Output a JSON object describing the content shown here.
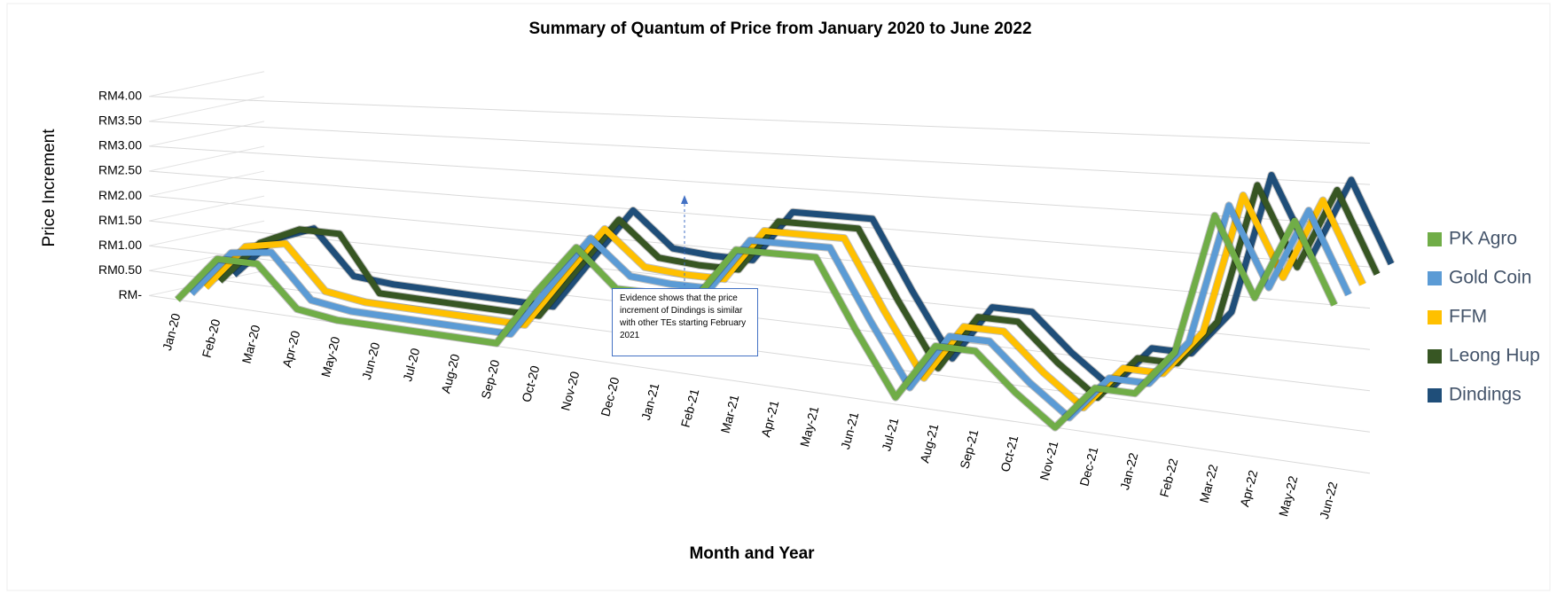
{
  "chart_data": {
    "type": "line",
    "title": "Summary of Quantum of Price from January 2020 to June 2022",
    "xlabel": "Month and Year",
    "ylabel": "Price Increment",
    "annotation": "Evidence shows that the price increment of Dindings is similar with other TEs starting February 2021",
    "categories": [
      "Jan-20",
      "Feb-20",
      "Mar-20",
      "Apr-20",
      "May-20",
      "Jun-20",
      "Jul-20",
      "Aug-20",
      "Sep-20",
      "Oct-20",
      "Nov-20",
      "Dec-20",
      "Jan-21",
      "Feb-21",
      "Mar-21",
      "Apr-21",
      "May-21",
      "Jun-21",
      "Jul-21",
      "Aug-21",
      "Sep-21",
      "Oct-21",
      "Nov-21",
      "Dec-21",
      "Jan-22",
      "Feb-22",
      "Mar-22",
      "Apr-22",
      "May-22",
      "Jun-22"
    ],
    "ylim": [
      0,
      4
    ],
    "yticks": [
      {
        "value": 0,
        "label": "RM-"
      },
      {
        "value": 0.5,
        "label": "RM0.50"
      },
      {
        "value": 1,
        "label": "RM1.00"
      },
      {
        "value": 1.5,
        "label": "RM1.50"
      },
      {
        "value": 2,
        "label": "RM2.00"
      },
      {
        "value": 2.5,
        "label": "RM2.50"
      },
      {
        "value": 3,
        "label": "RM3.00"
      },
      {
        "value": 3.5,
        "label": "RM3.50"
      },
      {
        "value": 4,
        "label": "RM4.00"
      }
    ],
    "grid": true,
    "legend": "right",
    "series": [
      {
        "name": "PK Agro",
        "color": "#70ad47",
        "values": [
          0,
          0.9,
          0.9,
          0.15,
          0.05,
          0.05,
          0.05,
          0.05,
          0.05,
          1.0,
          1.8,
          1.2,
          1.2,
          1.2,
          2.0,
          2.0,
          2.0,
          1.0,
          0.1,
          0.9,
          0.9,
          0.4,
          0,
          0.6,
          0.6,
          1.2,
          3.0,
          2.0,
          3.0,
          2.0
        ]
      },
      {
        "name": "Gold Coin",
        "color": "#5b9bd5",
        "values": [
          0,
          0.9,
          1.0,
          0.2,
          0.1,
          0.1,
          0.1,
          0.1,
          0.1,
          1.0,
          1.85,
          1.3,
          1.25,
          1.25,
          2.05,
          2.05,
          2.05,
          1.05,
          0.15,
          0.95,
          0.95,
          0.45,
          0.05,
          0.65,
          0.65,
          1.25,
          3.05,
          2.05,
          3.05,
          2.05
        ]
      },
      {
        "name": "FFM",
        "color": "#ffc000",
        "values": [
          0,
          0.9,
          1.05,
          0.25,
          0.15,
          0.15,
          0.15,
          0.15,
          0.15,
          1.05,
          1.9,
          1.35,
          1.3,
          1.3,
          2.1,
          2.1,
          2.1,
          1.1,
          0.2,
          1.0,
          1.0,
          0.5,
          0.1,
          0.7,
          0.7,
          1.3,
          3.1,
          2.1,
          3.1,
          2.1
        ]
      },
      {
        "name": "Leong Hup",
        "color": "#375623",
        "values": [
          0,
          0.85,
          1.2,
          1.2,
          0.2,
          0.2,
          0.2,
          0.2,
          0.2,
          1.1,
          1.95,
          1.4,
          1.35,
          1.35,
          2.15,
          2.15,
          2.15,
          1.15,
          0.25,
          1.05,
          1.05,
          0.55,
          0.15,
          0.75,
          0.75,
          1.35,
          3.15,
          2.15,
          3.15,
          2.15
        ]
      },
      {
        "name": "Dindings",
        "color": "#1f4e79",
        "values": [
          0,
          0.8,
          1.1,
          0.3,
          0.25,
          0.25,
          0.25,
          0.25,
          0.25,
          1.15,
          2.0,
          1.45,
          1.4,
          1.4,
          2.2,
          2.2,
          2.2,
          1.2,
          0.3,
          1.1,
          1.1,
          0.6,
          0.2,
          0.8,
          0.8,
          1.4,
          3.2,
          2.2,
          3.2,
          2.2
        ]
      }
    ]
  }
}
